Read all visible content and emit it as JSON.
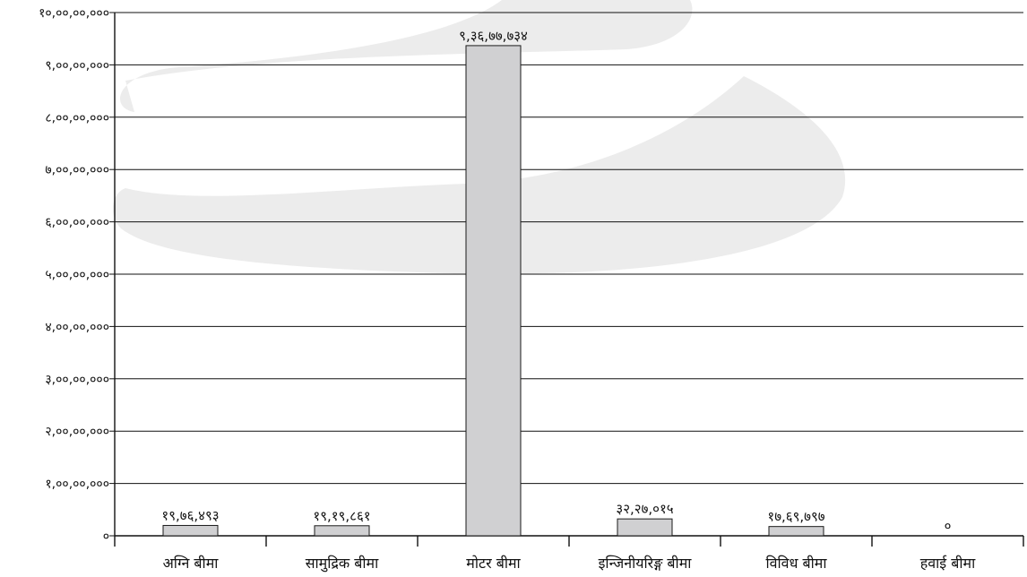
{
  "colors": {
    "bar_fill": "#d0d0d2",
    "bar_stroke": "#1a1a1a",
    "grid": "#111111",
    "watermark": "#ececec"
  },
  "chart_data": {
    "type": "bar",
    "title": "",
    "xlabel": "",
    "ylabel": "",
    "ylim": [
      0,
      100000000
    ],
    "grid": true,
    "legend": "none",
    "categories": [
      "अग्नि बीमा",
      "सामुद्रिक बीमा",
      "मोटर बीमा",
      "इन्जिनीयरिङ्ग बीमा",
      "विविध बीमा",
      "हवाई बीमा"
    ],
    "values": [
      1976493,
      1919861,
      93677734,
      3227015,
      1769797,
      0
    ],
    "data_labels": [
      "१९,७६,४९३",
      "१९,१९,८६१",
      "९,३६,७७,७३४",
      "३२,२७,०१५",
      "१७,६९,७९७",
      "०"
    ],
    "y_ticks": [
      0,
      10000000,
      20000000,
      30000000,
      40000000,
      50000000,
      60000000,
      70000000,
      80000000,
      90000000,
      100000000
    ],
    "y_tick_labels": [
      "०",
      "१,००,००,०००",
      "२,००,००,०००",
      "३,००,००,०००",
      "४,००,००,०००",
      "५,००,००,०००",
      "६,००,००,०००",
      "७,००,००,०००",
      "८,००,००,०००",
      "९,००,००,०००",
      "१०,००,००,०००"
    ]
  }
}
